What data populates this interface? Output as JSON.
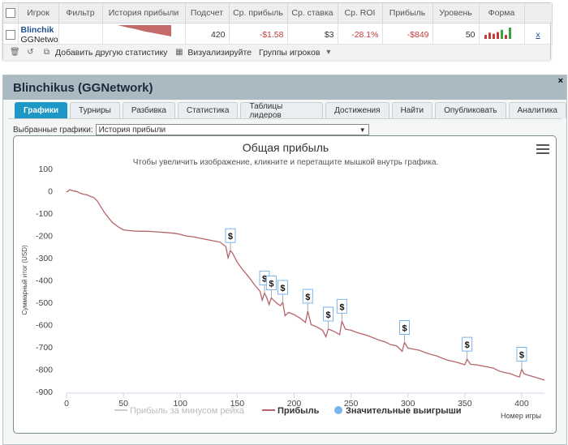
{
  "table": {
    "headers": [
      "",
      "Игрок",
      "Фильтр",
      "История прибыли",
      "Подсчет",
      "Ср. прибыль",
      "Ср. ставка",
      "Ср. ROI",
      "Прибыль",
      "Уровень",
      "Форма"
    ],
    "row": {
      "player": "Blinchik",
      "network": "GGNetwo",
      "count": "420",
      "avg_profit": "-$1.58",
      "avg_stake": "$3",
      "avg_roi": "-28.1%",
      "profit": "-$849",
      "level": "50",
      "remove": "x"
    }
  },
  "toolbar": {
    "add_stats": "Добавить другую статистику",
    "visualize": "Визуализируйте",
    "groups": "Группы игроков"
  },
  "window": {
    "title": "Blinchikus (GGNetwork)",
    "close": "×",
    "tabs": [
      "Графики",
      "Турниры",
      "Разбивка",
      "Статистика",
      "Таблицы лидеров",
      "Достижения",
      "Найти",
      "Опубликовать",
      "Аналитика"
    ],
    "active_tab": 0,
    "selector_label": "Выбранные графики:",
    "selector_value": "История прибыли"
  },
  "chart_data": {
    "type": "line",
    "title": "Общая прибыль",
    "subtitle": "Чтобы увеличить изображение, кликните и перетащите мышкой внутрь графика.",
    "xlabel": "Номер игры",
    "ylabel": "Суммарный итог (USD)",
    "xlim": [
      0,
      420
    ],
    "ylim": [
      -900,
      100
    ],
    "xticks": [
      0,
      50,
      100,
      150,
      200,
      250,
      300,
      350,
      400
    ],
    "yticks": [
      100,
      0,
      -100,
      -200,
      -300,
      -400,
      -500,
      -600,
      -700,
      -800,
      -900
    ],
    "legend_position": "bottom",
    "colors": {
      "line": "#b5656a",
      "rake": "#cccccc",
      "flag": "#7cb5ec",
      "axis": "#ccd6eb"
    },
    "legend": [
      "Прибыль за минусом рейка",
      "Прибыль",
      "Значительные выигрыши"
    ],
    "series": [
      {
        "name": "Прибыль",
        "points": [
          [
            0,
            -5
          ],
          [
            3,
            5
          ],
          [
            6,
            0
          ],
          [
            9,
            -3
          ],
          [
            12,
            -10
          ],
          [
            15,
            -15
          ],
          [
            18,
            -18
          ],
          [
            21,
            -25
          ],
          [
            24,
            -30
          ],
          [
            27,
            -45
          ],
          [
            30,
            -70
          ],
          [
            33,
            -95
          ],
          [
            36,
            -115
          ],
          [
            40,
            -140
          ],
          [
            45,
            -160
          ],
          [
            50,
            -175
          ],
          [
            55,
            -178
          ],
          [
            60,
            -180
          ],
          [
            65,
            -181
          ],
          [
            70,
            -181
          ],
          [
            75,
            -182
          ],
          [
            80,
            -184
          ],
          [
            85,
            -186
          ],
          [
            90,
            -188
          ],
          [
            95,
            -190
          ],
          [
            100,
            -195
          ],
          [
            105,
            -202
          ],
          [
            110,
            -205
          ],
          [
            115,
            -210
          ],
          [
            120,
            -215
          ],
          [
            125,
            -220
          ],
          [
            130,
            -225
          ],
          [
            135,
            -230
          ],
          [
            140,
            -250
          ],
          [
            142,
            -300
          ],
          [
            144,
            -268
          ],
          [
            146,
            -280
          ],
          [
            150,
            -320
          ],
          [
            155,
            -355
          ],
          [
            160,
            -385
          ],
          [
            165,
            -420
          ],
          [
            170,
            -450
          ],
          [
            172,
            -490
          ],
          [
            174,
            -458
          ],
          [
            176,
            -480
          ],
          [
            178,
            -510
          ],
          [
            180,
            -480
          ],
          [
            182,
            -490
          ],
          [
            185,
            -505
          ],
          [
            188,
            -515
          ],
          [
            190,
            -500
          ],
          [
            192,
            -560
          ],
          [
            195,
            -545
          ],
          [
            200,
            -555
          ],
          [
            205,
            -570
          ],
          [
            210,
            -590
          ],
          [
            212,
            -540
          ],
          [
            215,
            -600
          ],
          [
            220,
            -610
          ],
          [
            225,
            -625
          ],
          [
            228,
            -655
          ],
          [
            230,
            -620
          ],
          [
            235,
            -630
          ],
          [
            240,
            -645
          ],
          [
            242,
            -585
          ],
          [
            245,
            -620
          ],
          [
            250,
            -625
          ],
          [
            255,
            -635
          ],
          [
            260,
            -642
          ],
          [
            265,
            -650
          ],
          [
            270,
            -660
          ],
          [
            275,
            -670
          ],
          [
            280,
            -678
          ],
          [
            285,
            -690
          ],
          [
            290,
            -695
          ],
          [
            295,
            -720
          ],
          [
            297,
            -680
          ],
          [
            300,
            -705
          ],
          [
            305,
            -710
          ],
          [
            310,
            -715
          ],
          [
            315,
            -725
          ],
          [
            320,
            -733
          ],
          [
            325,
            -740
          ],
          [
            330,
            -750
          ],
          [
            335,
            -760
          ],
          [
            340,
            -765
          ],
          [
            345,
            -772
          ],
          [
            350,
            -780
          ],
          [
            352,
            -755
          ],
          [
            355,
            -778
          ],
          [
            360,
            -780
          ],
          [
            365,
            -785
          ],
          [
            370,
            -790
          ],
          [
            375,
            -795
          ],
          [
            380,
            -808
          ],
          [
            385,
            -815
          ],
          [
            390,
            -820
          ],
          [
            395,
            -830
          ],
          [
            398,
            -835
          ],
          [
            400,
            -800
          ],
          [
            402,
            -820
          ],
          [
            405,
            -826
          ],
          [
            410,
            -833
          ],
          [
            415,
            -841
          ],
          [
            420,
            -849
          ]
        ]
      }
    ],
    "big_wins": [
      {
        "x": 144,
        "y": -268,
        "label": "$"
      },
      {
        "x": 174,
        "y": -458,
        "label": "$"
      },
      {
        "x": 180,
        "y": -480,
        "label": "$"
      },
      {
        "x": 190,
        "y": -500,
        "label": "$"
      },
      {
        "x": 212,
        "y": -540,
        "label": "$"
      },
      {
        "x": 230,
        "y": -620,
        "label": "$"
      },
      {
        "x": 242,
        "y": -585,
        "label": "$"
      },
      {
        "x": 297,
        "y": -680,
        "label": "$"
      },
      {
        "x": 352,
        "y": -755,
        "label": "$"
      },
      {
        "x": 400,
        "y": -800,
        "label": "$"
      }
    ],
    "form_bars": [
      {
        "value": 0.35,
        "color": "#c23b3b"
      },
      {
        "value": 0.55,
        "color": "#c23b3b"
      },
      {
        "value": 0.45,
        "color": "#c23b3b"
      },
      {
        "value": 0.6,
        "color": "#c23b3b"
      },
      {
        "value": 0.8,
        "color": "#3aa33a"
      },
      {
        "value": 0.35,
        "color": "#c23b3b"
      },
      {
        "value": 1.0,
        "color": "#3aa33a"
      }
    ],
    "history_spark": [
      0,
      -0.2,
      -0.35,
      -0.55,
      -0.7,
      -0.85,
      -1.0
    ]
  }
}
